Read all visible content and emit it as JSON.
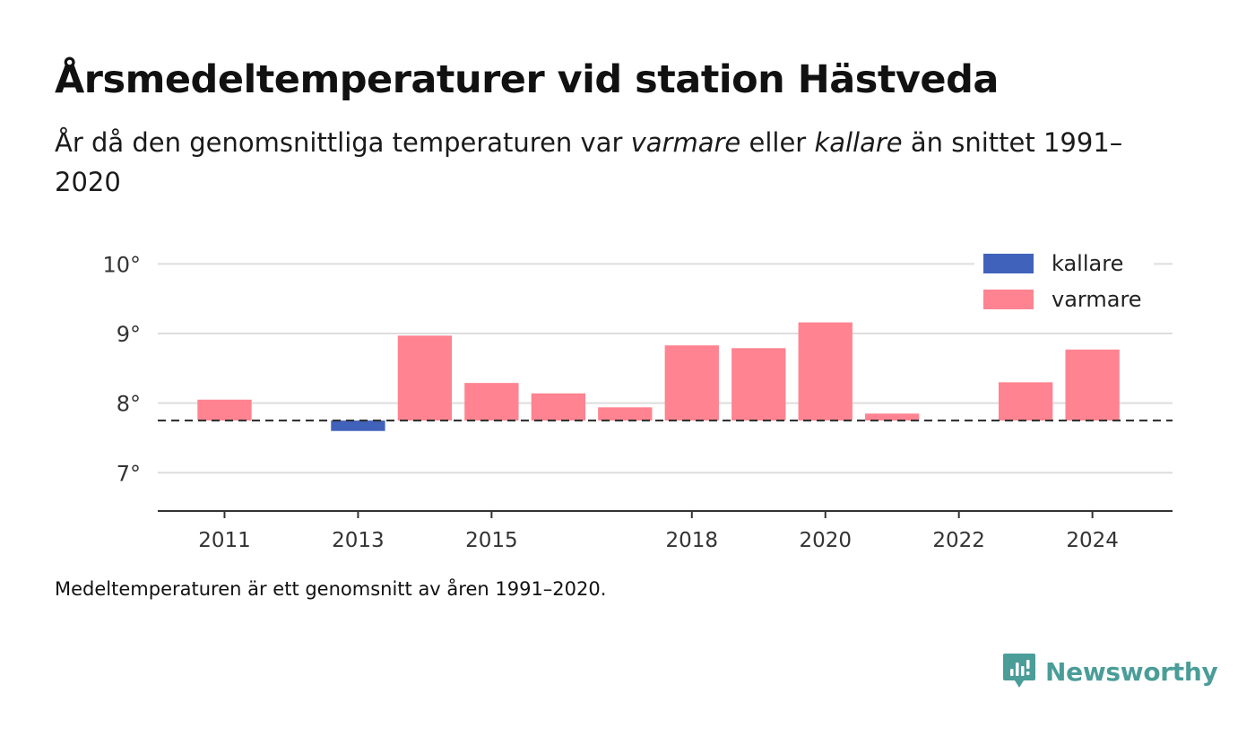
{
  "title": "Årsmedeltemperaturer vid station Hästveda",
  "subtitle": {
    "part1": "År då den genomsnittliga temperaturen var ",
    "warm_word": "varmare",
    "part2": " eller ",
    "cold_word": "kallare",
    "part3": " än snittet 1991–2020"
  },
  "footnote": "Medeltemperaturen är ett genomsnitt av åren 1991–2020.",
  "brand": {
    "name": "Newsworthy"
  },
  "colors": {
    "warmer": "#ff8390",
    "colder": "#4062bb",
    "grid": "#dddddd",
    "axis": "#333333",
    "baseline": "#333333",
    "brand": "#4a9d98"
  },
  "chart_data": {
    "type": "bar",
    "baseline": 7.75,
    "x": [
      2011,
      2013,
      2014,
      2015,
      2016,
      2017,
      2018,
      2019,
      2020,
      2021,
      2023,
      2024
    ],
    "values": [
      8.05,
      7.6,
      8.97,
      8.29,
      8.14,
      7.94,
      8.83,
      8.79,
      9.16,
      7.85,
      8.3,
      8.77
    ],
    "xlim": [
      2010,
      2025.2
    ],
    "ylim": [
      6.45,
      10.25
    ],
    "yticks": [
      7,
      8,
      9,
      10
    ],
    "ytick_labels": [
      "7°",
      "8°",
      "9°",
      "10°"
    ],
    "xticks": [
      2011,
      2013,
      2015,
      2018,
      2020,
      2022,
      2024
    ],
    "xtick_labels": [
      "2011",
      "2013",
      "2015",
      "2018",
      "2020",
      "2022",
      "2024"
    ],
    "grid": true,
    "legend": {
      "position": "top-right",
      "items": [
        {
          "name": "kallare",
          "key": "colder"
        },
        {
          "name": "varmare",
          "key": "warmer"
        }
      ]
    }
  }
}
